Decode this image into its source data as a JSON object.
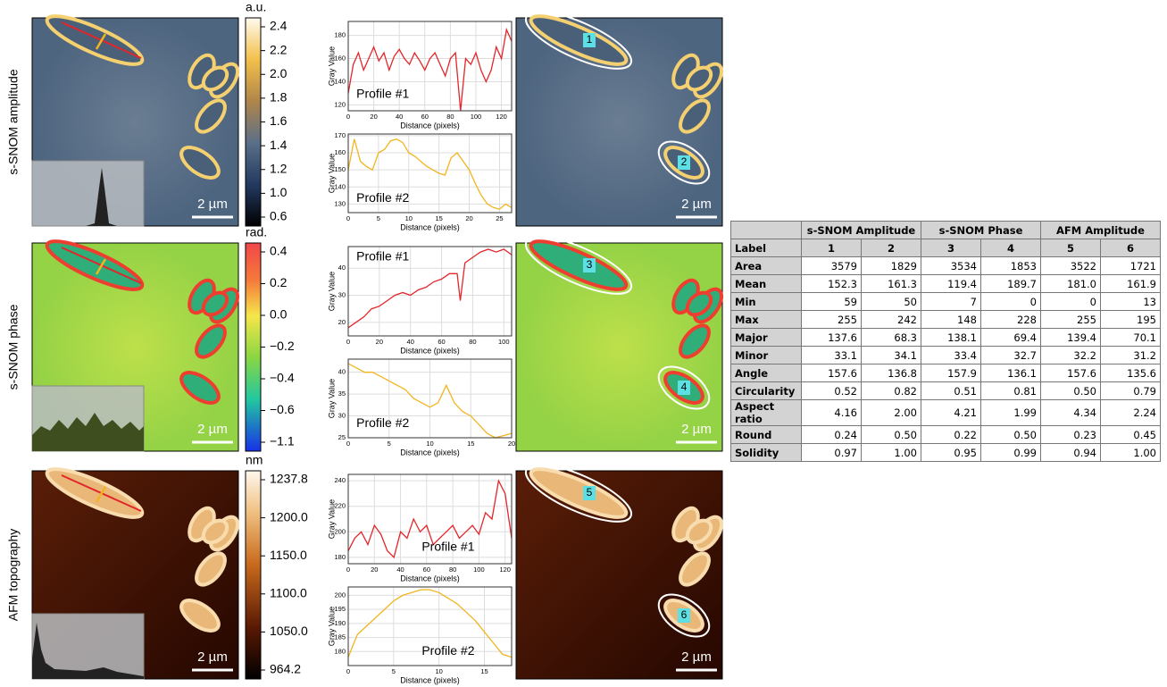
{
  "panels": [
    {
      "label": "s-SNOM amplitude",
      "unit": "a.u.",
      "colorbar_ticks": [
        "2.4",
        "2.2",
        "2.0",
        "1.8",
        "1.6",
        "1.4",
        "1.2",
        "1.0",
        "0.6"
      ],
      "scale_bar": "2 µm",
      "scale_bar_roi": "2 µm",
      "roi_labels": [
        "1",
        "2"
      ],
      "profiles": [
        {
          "type": "line",
          "title": "Profile #1",
          "x_label": "Distance (pixels)",
          "y_label": "Gray Value",
          "color": "#e3262a",
          "x": [
            0,
            4,
            8,
            12,
            16,
            20,
            24,
            28,
            32,
            36,
            40,
            44,
            48,
            52,
            56,
            60,
            64,
            68,
            72,
            76,
            80,
            84,
            88,
            92,
            96,
            100,
            104,
            108,
            112,
            116,
            120,
            124,
            128
          ],
          "values": [
            130,
            155,
            165,
            150,
            160,
            170,
            158,
            165,
            150,
            162,
            168,
            160,
            155,
            165,
            158,
            150,
            160,
            165,
            155,
            145,
            160,
            165,
            115,
            160,
            155,
            165,
            150,
            140,
            150,
            170,
            160,
            185,
            175
          ],
          "xlim": [
            0,
            128
          ],
          "ylim": [
            115,
            192
          ],
          "xticks": [
            0,
            20,
            40,
            60,
            80,
            100,
            120
          ],
          "yticks": [
            120,
            140,
            160,
            180
          ]
        },
        {
          "type": "line",
          "title": "Profile #2",
          "x_label": "Distance (pixels)",
          "y_label": "Gray Value",
          "color": "#f2b51f",
          "x": [
            0,
            1,
            2,
            3,
            4,
            5,
            6,
            7,
            8,
            9,
            10,
            11,
            12,
            13,
            14,
            15,
            16,
            17,
            18,
            19,
            20,
            21,
            22,
            23,
            24,
            25,
            26,
            27
          ],
          "values": [
            150,
            168,
            155,
            152,
            150,
            160,
            162,
            167,
            168,
            166,
            160,
            158,
            155,
            152,
            150,
            148,
            147,
            157,
            160,
            155,
            150,
            142,
            135,
            130,
            128,
            127,
            130,
            128
          ],
          "xlim": [
            0,
            27
          ],
          "ylim": [
            125,
            171
          ],
          "xticks": [
            0,
            5,
            10,
            15,
            20,
            25
          ],
          "yticks": [
            130,
            140,
            150,
            160,
            170
          ]
        }
      ]
    },
    {
      "label": "s-SNOM phase",
      "unit": "rad.",
      "colorbar_ticks": [
        "0.4",
        "0.2",
        "0.0",
        "−0.2",
        "−0.4",
        "−0.6",
        "−1.1"
      ],
      "scale_bar": "2 µm",
      "scale_bar_roi": "2 µm",
      "roi_labels": [
        "3",
        "4"
      ],
      "profiles": [
        {
          "type": "line",
          "title": "Profile #1",
          "x_label": "Distance (pixels)",
          "y_label": "Gray Value",
          "color": "#e3262a",
          "x": [
            0,
            5,
            10,
            15,
            20,
            25,
            30,
            35,
            40,
            45,
            50,
            55,
            60,
            65,
            70,
            72,
            75,
            80,
            85,
            90,
            95,
            100,
            105
          ],
          "values": [
            18,
            20,
            22,
            25,
            26,
            28,
            30,
            31,
            30,
            32,
            33,
            35,
            36,
            38,
            38,
            28,
            42,
            44,
            46,
            47,
            46,
            47,
            45
          ],
          "xlim": [
            0,
            105
          ],
          "ylim": [
            15,
            48
          ],
          "xticks": [
            0,
            20,
            40,
            60,
            80,
            100
          ],
          "yticks": [
            20,
            30,
            40
          ]
        },
        {
          "type": "line",
          "title": "Profile #2",
          "x_label": "Distance (pixels)",
          "y_label": "Gray Value",
          "color": "#f2b51f",
          "x": [
            0,
            1,
            2,
            3,
            4,
            5,
            6,
            7,
            8,
            9,
            10,
            11,
            12,
            13,
            14,
            15,
            16,
            17,
            18,
            19,
            20
          ],
          "values": [
            42,
            41,
            40,
            40,
            39,
            38,
            37,
            36,
            34,
            33,
            32,
            33,
            37,
            33,
            31,
            30,
            28,
            26,
            25,
            25.5,
            26
          ],
          "xlim": [
            0,
            20
          ],
          "ylim": [
            25,
            43
          ],
          "xticks": [
            0,
            5,
            10,
            15,
            20
          ],
          "yticks": [
            25,
            30,
            35,
            40
          ]
        }
      ]
    },
    {
      "label": "AFM topography",
      "unit": "nm",
      "colorbar_ticks": [
        "1237.8",
        "1200.0",
        "1150.0",
        "1100.0",
        "1050.0",
        "964.2"
      ],
      "scale_bar": "2 µm",
      "scale_bar_roi": "2 µm",
      "roi_labels": [
        "5",
        "6"
      ],
      "profiles": [
        {
          "type": "line",
          "title": "Profile #1",
          "x_label": "Distance (pixels)",
          "y_label": "Gray Value",
          "color": "#e3262a",
          "x": [
            0,
            5,
            10,
            15,
            20,
            25,
            30,
            35,
            40,
            45,
            50,
            55,
            60,
            65,
            70,
            75,
            80,
            85,
            90,
            95,
            100,
            105,
            110,
            115,
            120,
            125
          ],
          "values": [
            185,
            195,
            200,
            190,
            205,
            198,
            185,
            180,
            200,
            195,
            210,
            200,
            205,
            190,
            195,
            200,
            205,
            195,
            200,
            205,
            198,
            215,
            210,
            240,
            230,
            195
          ],
          "xlim": [
            0,
            125
          ],
          "ylim": [
            175,
            245
          ],
          "xticks": [
            0,
            20,
            40,
            60,
            80,
            100,
            120
          ],
          "yticks": [
            180,
            200,
            220,
            240
          ]
        },
        {
          "type": "line",
          "title": "Profile #2",
          "x_label": "Distance (pixels)",
          "y_label": "Gray Value",
          "color": "#f2b51f",
          "x": [
            0,
            1,
            2,
            3,
            4,
            5,
            6,
            7,
            8,
            9,
            10,
            11,
            12,
            13,
            14,
            15,
            16,
            17,
            18
          ],
          "values": [
            178,
            186,
            189,
            192,
            195,
            198,
            200,
            201,
            202,
            202,
            201,
            199,
            197,
            194,
            191,
            187,
            183,
            179,
            178
          ],
          "xlim": [
            0,
            18
          ],
          "ylim": [
            175,
            203
          ],
          "xticks": [
            0,
            5,
            10,
            15
          ],
          "yticks": [
            180,
            185,
            190,
            195,
            200
          ]
        }
      ]
    }
  ],
  "table": {
    "groups": [
      "s-SNOM Amplitude",
      "s-SNOM Phase",
      "AFM Amplitude"
    ],
    "header": [
      "Label",
      "1",
      "2",
      "3",
      "4",
      "5",
      "6"
    ],
    "rows": [
      [
        "Area",
        "3579",
        "1829",
        "3534",
        "1853",
        "3522",
        "1721"
      ],
      [
        "Mean",
        "152.3",
        "161.3",
        "119.4",
        "189.7",
        "181.0",
        "161.9"
      ],
      [
        "Min",
        "59",
        "50",
        "7",
        "0",
        "0",
        "13"
      ],
      [
        "Max",
        "255",
        "242",
        "148",
        "228",
        "255",
        "195"
      ],
      [
        "Major",
        "137.6",
        "68.3",
        "138.1",
        "69.4",
        "139.4",
        "70.1"
      ],
      [
        "Minor",
        "33.1",
        "34.1",
        "33.4",
        "32.7",
        "32.2",
        "31.2"
      ],
      [
        "Angle",
        "157.6",
        "136.8",
        "157.9",
        "136.1",
        "157.6",
        "135.6"
      ],
      [
        "Circularity",
        "0.52",
        "0.82",
        "0.51",
        "0.81",
        "0.50",
        "0.79"
      ],
      [
        "Aspect ratio",
        "4.16",
        "2.00",
        "4.21",
        "1.99",
        "4.34",
        "2.24"
      ],
      [
        "Round",
        "0.24",
        "0.50",
        "0.22",
        "0.50",
        "0.23",
        "0.45"
      ],
      [
        "Solidity",
        "0.97",
        "1.00",
        "0.95",
        "0.99",
        "0.94",
        "1.00"
      ]
    ]
  }
}
